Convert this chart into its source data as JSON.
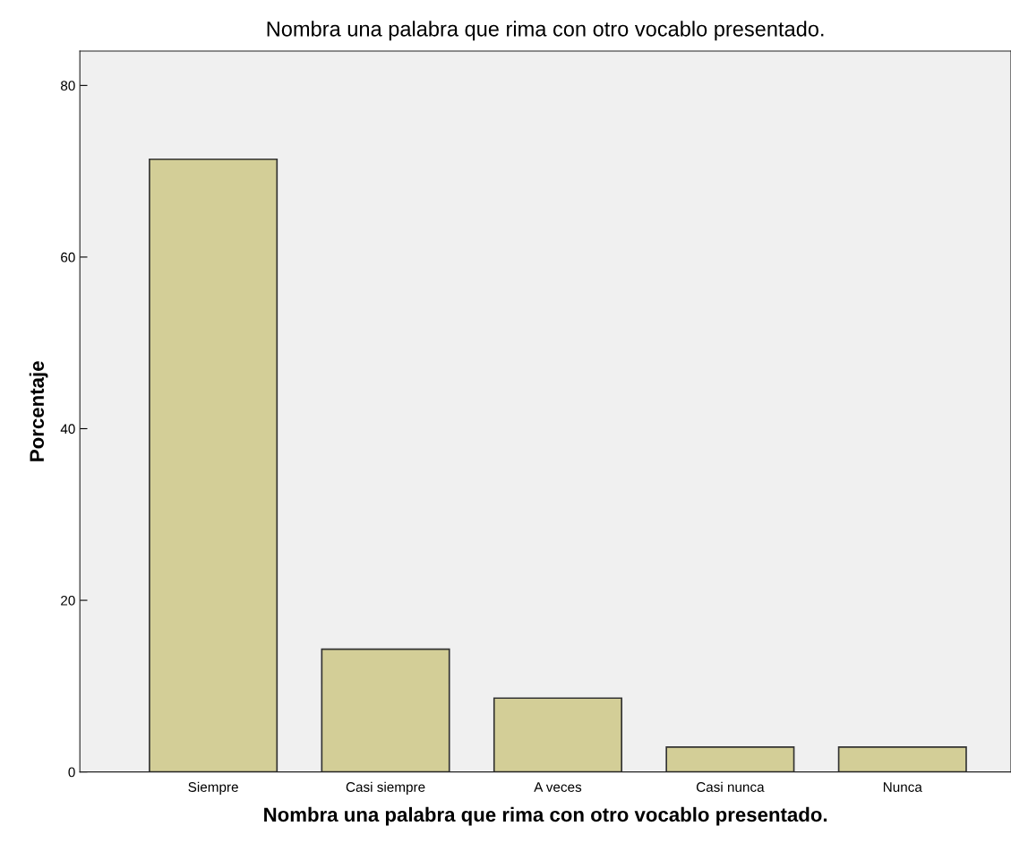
{
  "chart_data": {
    "type": "bar",
    "title": "Nombra una palabra que rima con otro vocablo presentado.",
    "xlabel": "Nombra una palabra que rima con otro vocablo presentado.",
    "ylabel": "Porcentaje",
    "categories": [
      "Siempre",
      "Casi siempre",
      "A veces",
      "Casi nunca",
      "Nunca"
    ],
    "values": [
      71.4,
      14.3,
      8.6,
      2.9,
      2.9
    ],
    "color": "#d3ce97",
    "ylim": [
      0,
      84
    ],
    "yticks": [
      0,
      20,
      40,
      60,
      80
    ],
    "grid": false
  }
}
